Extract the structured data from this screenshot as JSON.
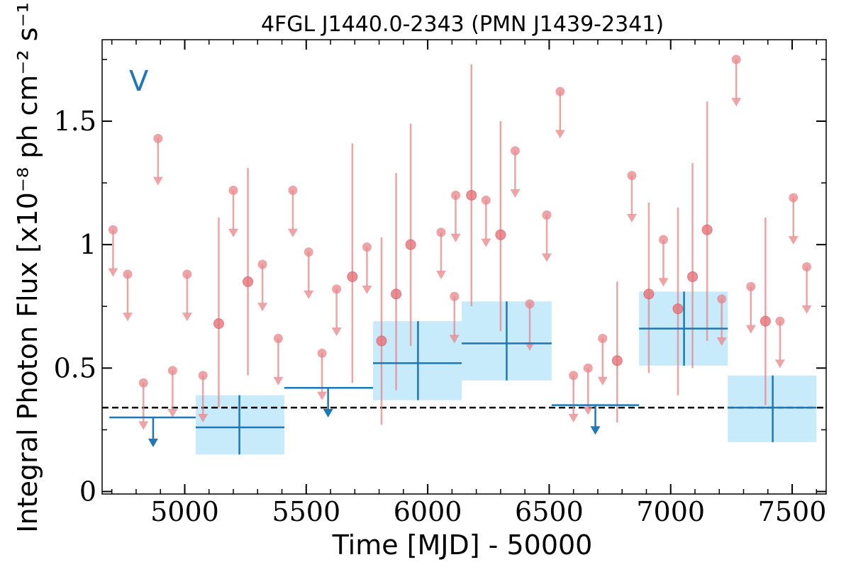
{
  "chart_data": {
    "type": "scatter",
    "title": "4FGL J1440.0-2343 (PMN J1439-2341)",
    "xlabel": "Time [MJD] - 50000",
    "ylabel": "Integral Photon Flux [x10⁻⁸ ph cm⁻² s⁻¹]",
    "band_label": "V",
    "xlim": [
      4660,
      7640
    ],
    "ylim": [
      -0.01,
      1.83
    ],
    "x_ticks": [
      5000,
      5500,
      6000,
      6500,
      7000,
      7500
    ],
    "x_tick_labels": [
      "5000",
      "5500",
      "6000",
      "6500",
      "7000",
      "7500"
    ],
    "y_ticks": [
      0,
      0.5,
      1.0,
      1.5
    ],
    "y_tick_labels": [
      "0",
      "0.5",
      "1",
      "1.5"
    ],
    "x_minor_step": 100,
    "y_minor_step": 0.25,
    "reference_line": {
      "y": 0.34,
      "style": "dashed",
      "color": "#000000"
    },
    "colors": {
      "short_bins": "#e8868a",
      "long_bins": "#1f77b4",
      "long_bins_box": "#c7ebfb"
    },
    "series": [
      {
        "kind": "short-timescale upper limits",
        "points": [
          {
            "x": 4705,
            "y": 1.06
          },
          {
            "x": 4765,
            "y": 0.88
          },
          {
            "x": 4830,
            "y": 0.44
          },
          {
            "x": 4890,
            "y": 1.43
          },
          {
            "x": 4950,
            "y": 0.49
          },
          {
            "x": 5010,
            "y": 0.88
          },
          {
            "x": 5075,
            "y": 0.47
          },
          {
            "x": 5200,
            "y": 1.22
          },
          {
            "x": 5320,
            "y": 0.92
          },
          {
            "x": 5385,
            "y": 0.62
          },
          {
            "x": 5445,
            "y": 1.22
          },
          {
            "x": 5510,
            "y": 0.97
          },
          {
            "x": 5565,
            "y": 0.56
          },
          {
            "x": 5625,
            "y": 0.82
          },
          {
            "x": 5750,
            "y": 0.99
          },
          {
            "x": 6055,
            "y": 1.05
          },
          {
            "x": 6110,
            "y": 0.79
          },
          {
            "x": 6115,
            "y": 1.2
          },
          {
            "x": 6240,
            "y": 1.18
          },
          {
            "x": 6360,
            "y": 1.38
          },
          {
            "x": 6420,
            "y": 0.76
          },
          {
            "x": 6490,
            "y": 1.12
          },
          {
            "x": 6545,
            "y": 1.62
          },
          {
            "x": 6600,
            "y": 0.47
          },
          {
            "x": 6660,
            "y": 0.5
          },
          {
            "x": 6720,
            "y": 0.62
          },
          {
            "x": 6840,
            "y": 1.28
          },
          {
            "x": 6970,
            "y": 1.02
          },
          {
            "x": 7210,
            "y": 0.78
          },
          {
            "x": 7270,
            "y": 1.75
          },
          {
            "x": 7330,
            "y": 0.83
          },
          {
            "x": 7450,
            "y": 0.69
          },
          {
            "x": 7505,
            "y": 1.19
          },
          {
            "x": 7560,
            "y": 0.91
          }
        ]
      },
      {
        "kind": "short-timescale detections",
        "points": [
          {
            "x": 5140,
            "y": 0.68,
            "ylo": 0.34,
            "yhi": 1.11
          },
          {
            "x": 5260,
            "y": 0.85,
            "ylo": 0.47,
            "yhi": 1.31
          },
          {
            "x": 5690,
            "y": 0.87,
            "ylo": 0.44,
            "yhi": 1.41
          },
          {
            "x": 5810,
            "y": 0.61,
            "ylo": 0.27,
            "yhi": 1.03
          },
          {
            "x": 5870,
            "y": 0.8,
            "ylo": 0.41,
            "yhi": 1.29
          },
          {
            "x": 5930,
            "y": 1.0,
            "ylo": 0.59,
            "yhi": 1.49
          },
          {
            "x": 6180,
            "y": 1.2,
            "ylo": 0.75,
            "yhi": 1.73
          },
          {
            "x": 6300,
            "y": 1.04,
            "ylo": 0.65,
            "yhi": 1.5
          },
          {
            "x": 6780,
            "y": 0.53,
            "ylo": 0.28,
            "yhi": 0.85
          },
          {
            "x": 6910,
            "y": 0.8,
            "ylo": 0.48,
            "yhi": 1.17
          },
          {
            "x": 7030,
            "y": 0.74,
            "ylo": 0.39,
            "yhi": 1.15
          },
          {
            "x": 7090,
            "y": 0.87,
            "ylo": 0.5,
            "yhi": 1.33
          },
          {
            "x": 7150,
            "y": 1.06,
            "ylo": 0.61,
            "yhi": 1.58
          },
          {
            "x": 7390,
            "y": 0.69,
            "ylo": 0.35,
            "yhi": 1.11
          }
        ]
      },
      {
        "kind": "long-timescale upper limits",
        "points": [
          {
            "x": 4870,
            "x0": 4690,
            "x1": 5045,
            "y": 0.3
          },
          {
            "x": 5590,
            "x0": 5410,
            "x1": 5775,
            "y": 0.42
          },
          {
            "x": 6690,
            "x0": 6510,
            "x1": 6870,
            "y": 0.35
          }
        ]
      },
      {
        "kind": "long-timescale detections",
        "points": [
          {
            "x": 5225,
            "x0": 5045,
            "x1": 5410,
            "y": 0.26,
            "ylo": 0.15,
            "yhi": 0.39
          },
          {
            "x": 5960,
            "x0": 5775,
            "x1": 6140,
            "y": 0.52,
            "ylo": 0.37,
            "yhi": 0.69
          },
          {
            "x": 6325,
            "x0": 6140,
            "x1": 6510,
            "y": 0.6,
            "ylo": 0.45,
            "yhi": 0.77
          },
          {
            "x": 7055,
            "x0": 6870,
            "x1": 7235,
            "y": 0.66,
            "ylo": 0.51,
            "yhi": 0.81
          },
          {
            "x": 7420,
            "x0": 7235,
            "x1": 7600,
            "y": 0.34,
            "ylo": 0.2,
            "yhi": 0.47
          }
        ]
      }
    ]
  }
}
